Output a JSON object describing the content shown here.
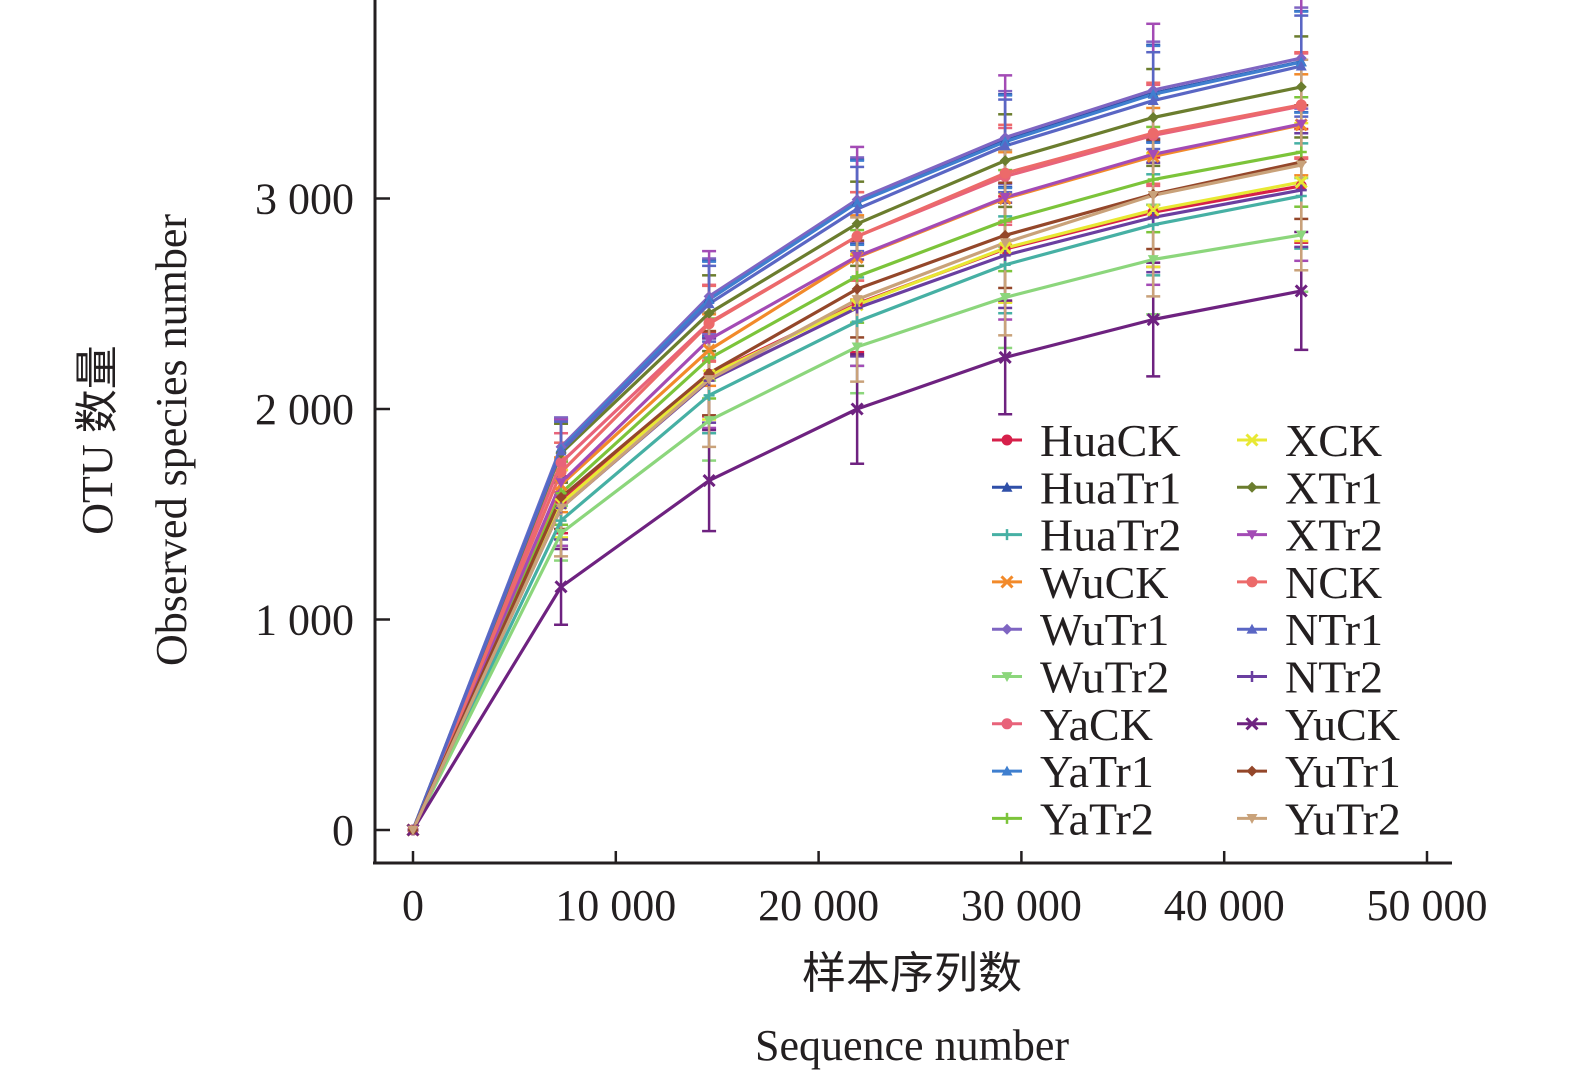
{
  "chart_data": {
    "type": "line",
    "title": "",
    "xlabel_cn": "样本序列数",
    "xlabel": "Sequence number",
    "ylabel_cn": "OTU 数量",
    "ylabel": "Observed species number",
    "xlim": [
      0,
      50000
    ],
    "ylim": [
      0,
      3800
    ],
    "x_ticks": [
      0,
      10000,
      20000,
      30000,
      40000,
      50000
    ],
    "x_tick_labels": [
      "0",
      "10 000",
      "20 000",
      "30 000",
      "40 000",
      "50 000"
    ],
    "y_ticks": [
      0,
      1000,
      2000,
      3000
    ],
    "y_tick_labels": [
      "0",
      "1 000",
      "2 000",
      "3 000"
    ],
    "grid": false,
    "legend_position": "bottom-right",
    "error_bars": true,
    "x": [
      0,
      7300,
      14600,
      21900,
      29200,
      36500,
      43800
    ],
    "series": [
      {
        "name": "HuaCK",
        "color": "#d6204a",
        "marker": "circle",
        "values": [
          0,
          1560,
          2165,
          2500,
          2760,
          2935,
          3060
        ],
        "errors": [
          0,
          150,
          200,
          230,
          250,
          260,
          270
        ]
      },
      {
        "name": "HuaTr1",
        "color": "#2f4fa8",
        "marker": "triangle-up",
        "values": [
          0,
          1815,
          2525,
          2985,
          3275,
          3500,
          3650
        ],
        "errors": [
          0,
          140,
          180,
          200,
          220,
          230,
          240
        ]
      },
      {
        "name": "HuaTr2",
        "color": "#46b0a4",
        "marker": "plus",
        "values": [
          0,
          1470,
          2065,
          2415,
          2685,
          2875,
          3012
        ],
        "errors": [
          0,
          120,
          180,
          210,
          230,
          240,
          250
        ]
      },
      {
        "name": "WuCK",
        "color": "#f28a2a",
        "marker": "x",
        "values": [
          0,
          1640,
          2280,
          2720,
          3000,
          3200,
          3350
        ],
        "errors": [
          0,
          130,
          170,
          200,
          220,
          230,
          240
        ]
      },
      {
        "name": "WuTr1",
        "color": "#7f65c2",
        "marker": "diamond",
        "values": [
          0,
          1820,
          2535,
          2995,
          3290,
          3515,
          3667
        ],
        "errors": [
          0,
          140,
          180,
          200,
          220,
          230,
          240
        ]
      },
      {
        "name": "WuTr2",
        "color": "#8cd67c",
        "marker": "triangle-down",
        "values": [
          0,
          1410,
          1945,
          2295,
          2530,
          2710,
          2827
        ],
        "errors": [
          0,
          130,
          190,
          220,
          240,
          260,
          270
        ]
      },
      {
        "name": "YaCK",
        "color": "#e8637a",
        "marker": "circle",
        "values": [
          0,
          1745,
          2410,
          2820,
          3105,
          3300,
          3439
        ],
        "errors": [
          0,
          140,
          180,
          210,
          230,
          240,
          250
        ]
      },
      {
        "name": "YaTr1",
        "color": "#3f7fcf",
        "marker": "triangle-up",
        "values": [
          0,
          1810,
          2520,
          2980,
          3270,
          3495,
          3648
        ],
        "errors": [
          0,
          140,
          180,
          200,
          220,
          230,
          240
        ]
      },
      {
        "name": "YaTr2",
        "color": "#7cc43a",
        "marker": "plus",
        "values": [
          0,
          1600,
          2240,
          2630,
          2895,
          3090,
          3221
        ],
        "errors": [
          0,
          150,
          190,
          220,
          240,
          250,
          260
        ]
      },
      {
        "name": "XCK",
        "color": "#e8e833",
        "marker": "x",
        "values": [
          0,
          1550,
          2160,
          2495,
          2765,
          2945,
          3078
        ],
        "errors": [
          0,
          160,
          210,
          240,
          260,
          270,
          280
        ]
      },
      {
        "name": "XTr1",
        "color": "#6b7d2e",
        "marker": "diamond",
        "values": [
          0,
          1790,
          2455,
          2880,
          3180,
          3385,
          3530
        ],
        "errors": [
          0,
          140,
          180,
          200,
          220,
          230,
          240
        ]
      },
      {
        "name": "XTr2",
        "color": "#a34bb5",
        "marker": "triangle-down",
        "values": [
          0,
          1650,
          2330,
          2725,
          3005,
          3210,
          3354
        ],
        "errors": [
          0,
          300,
          420,
          520,
          580,
          620,
          650
        ]
      },
      {
        "name": "NCK",
        "color": "#ec6a6a",
        "marker": "circle",
        "values": [
          0,
          1700,
          2405,
          2820,
          3120,
          3310,
          3445
        ],
        "errors": [
          0,
          140,
          180,
          210,
          230,
          240,
          250
        ]
      },
      {
        "name": "NTr1",
        "color": "#5a66c4",
        "marker": "triangle-up",
        "values": [
          0,
          1800,
          2500,
          2950,
          3250,
          3465,
          3629
        ],
        "errors": [
          0,
          140,
          180,
          200,
          220,
          230,
          240
        ]
      },
      {
        "name": "NTr2",
        "color": "#6a3fa0",
        "marker": "plus",
        "values": [
          0,
          1530,
          2135,
          2480,
          2730,
          2910,
          3040
        ],
        "errors": [
          0,
          150,
          200,
          230,
          250,
          260,
          270
        ]
      },
      {
        "name": "YuCK",
        "color": "#6e2280",
        "marker": "x",
        "values": [
          0,
          1155,
          1660,
          2000,
          2245,
          2425,
          2561
        ],
        "errors": [
          0,
          180,
          240,
          260,
          270,
          270,
          280
        ]
      },
      {
        "name": "YuTr1",
        "color": "#94472a",
        "marker": "diamond",
        "values": [
          0,
          1580,
          2170,
          2570,
          2825,
          3020,
          3173
        ],
        "errors": [
          0,
          150,
          200,
          230,
          250,
          260,
          270
        ]
      },
      {
        "name": "YuTr2",
        "color": "#c9a27a",
        "marker": "triangle-down",
        "values": [
          0,
          1530,
          2140,
          2520,
          2790,
          3015,
          3159
        ],
        "errors": [
          0,
          230,
          320,
          390,
          440,
          480,
          500
        ]
      }
    ]
  }
}
